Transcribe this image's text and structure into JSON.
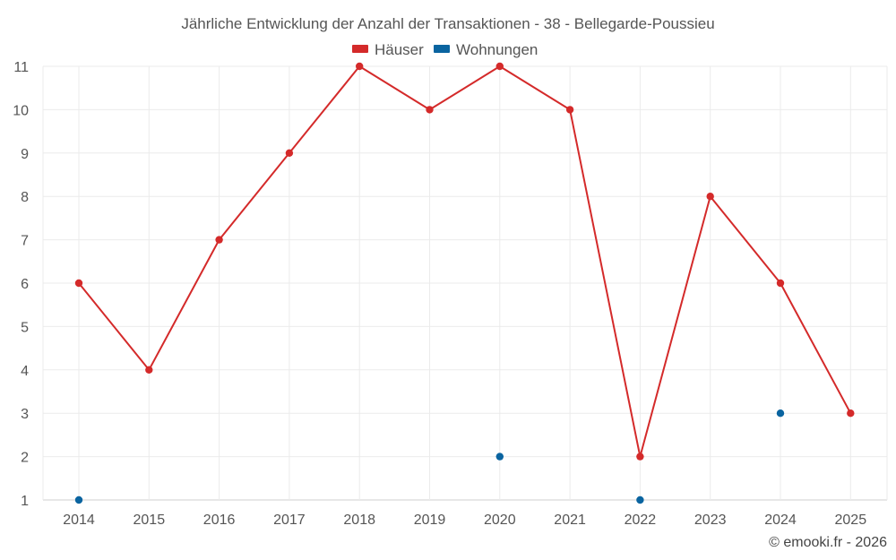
{
  "chart_data": {
    "type": "line",
    "title": "Jährliche Entwicklung der Anzahl der Transaktionen - 38 - Bellegarde-Poussieu",
    "xlabel": "",
    "ylabel": "",
    "x": [
      "2014",
      "2015",
      "2016",
      "2017",
      "2018",
      "2019",
      "2020",
      "2021",
      "2022",
      "2023",
      "2024",
      "2025"
    ],
    "ylim": [
      1,
      11
    ],
    "yticks": [
      1,
      2,
      3,
      4,
      5,
      6,
      7,
      8,
      9,
      10,
      11
    ],
    "grid": true,
    "legend_position": "top-center",
    "series": [
      {
        "name": "Häuser",
        "color": "#d42a2a",
        "style": "line-markers",
        "values": [
          6,
          4,
          7,
          9,
          11,
          10,
          11,
          10,
          2,
          8,
          6,
          3
        ]
      },
      {
        "name": "Wohnungen",
        "color": "#0a64a0",
        "style": "markers",
        "values": [
          1,
          null,
          null,
          null,
          null,
          null,
          2,
          null,
          1,
          null,
          3,
          null
        ]
      }
    ]
  },
  "credit": "© emooki.fr - 2026"
}
